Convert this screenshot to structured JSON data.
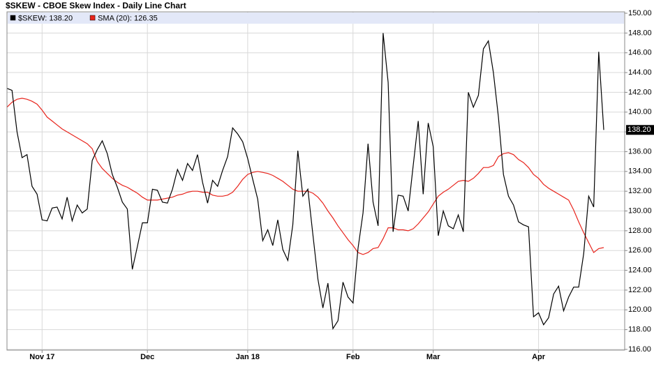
{
  "chart_data": {
    "type": "line",
    "title": "$SKEW - CBOE Skew Index - Daily Line Chart",
    "categories": [
      null,
      null,
      null,
      null,
      null,
      null,
      null,
      "Nov 17",
      null,
      null,
      null,
      null,
      null,
      null,
      null,
      null,
      null,
      null,
      null,
      null,
      null,
      null,
      null,
      null,
      null,
      null,
      null,
      null,
      "Dec",
      null,
      null,
      null,
      null,
      null,
      null,
      null,
      null,
      null,
      null,
      null,
      null,
      null,
      null,
      null,
      null,
      null,
      null,
      null,
      "Jan 18",
      null,
      null,
      null,
      null,
      null,
      null,
      null,
      null,
      null,
      null,
      null,
      null,
      null,
      null,
      null,
      null,
      null,
      null,
      null,
      null,
      "Feb",
      null,
      null,
      null,
      null,
      null,
      null,
      null,
      null,
      null,
      null,
      null,
      null,
      null,
      null,
      null,
      "Mar",
      null,
      null,
      null,
      null,
      null,
      null,
      null,
      null,
      null,
      null,
      null,
      null,
      null,
      null,
      null,
      null,
      null,
      null,
      null,
      null,
      "Apr",
      null,
      null,
      null,
      null,
      null,
      null,
      null,
      null,
      null,
      null,
      null,
      null,
      null
    ],
    "series": [
      {
        "name": "$SKEW: 138.20",
        "color": "#000000",
        "last_value_label": "138.20",
        "values": [
          142.4,
          142.2,
          138.0,
          135.4,
          135.7,
          132.5,
          131.7,
          129.1,
          129.0,
          130.3,
          130.4,
          129.2,
          131.4,
          129.0,
          130.6,
          129.8,
          130.2,
          135.1,
          136.2,
          137.1,
          135.8,
          133.7,
          132.4,
          130.9,
          130.2,
          124.1,
          126.4,
          128.8,
          128.8,
          132.2,
          132.1,
          130.9,
          130.8,
          132.2,
          134.2,
          133.1,
          134.8,
          134.1,
          135.7,
          132.9,
          130.8,
          133.1,
          132.5,
          134.1,
          135.5,
          138.4,
          137.8,
          137.0,
          135.3,
          133.2,
          131.2,
          127.0,
          128.1,
          126.5,
          129.1,
          126.1,
          125.0,
          128.6,
          136.1,
          131.5,
          132.2,
          127.6,
          123.1,
          120.2,
          122.7,
          118.1,
          118.9,
          122.8,
          121.3,
          120.7,
          126.2,
          129.8,
          136.8,
          130.9,
          128.5,
          148.0,
          143.0,
          127.9,
          131.6,
          131.5,
          130.0,
          134.6,
          139.1,
          131.7,
          138.9,
          136.5,
          127.5,
          130.0,
          128.5,
          128.2,
          129.6,
          127.9,
          142.0,
          140.5,
          141.7,
          146.4,
          147.2,
          144.0,
          139.5,
          133.7,
          131.5,
          130.6,
          128.9,
          128.6,
          128.4,
          119.3,
          119.7,
          118.5,
          119.2,
          121.6,
          122.4,
          119.9,
          121.3,
          122.3,
          122.3,
          125.7,
          131.5,
          130.4,
          146.1,
          138.2
        ]
      },
      {
        "name": "SMA (20): 126.35",
        "color": "#e8241c",
        "values": [
          140.5,
          141.0,
          141.3,
          141.4,
          141.3,
          141.1,
          140.8,
          140.2,
          139.5,
          139.1,
          138.7,
          138.3,
          138.0,
          137.7,
          137.4,
          137.1,
          136.8,
          136.3,
          135.0,
          134.3,
          133.8,
          133.3,
          132.9,
          132.6,
          132.4,
          132.1,
          131.8,
          131.4,
          131.1,
          131.1,
          131.1,
          131.2,
          131.3,
          131.4,
          131.6,
          131.7,
          131.9,
          132.0,
          132.0,
          131.9,
          131.9,
          131.6,
          131.5,
          131.5,
          131.6,
          131.9,
          132.5,
          133.2,
          133.7,
          133.9,
          134.0,
          133.9,
          133.8,
          133.6,
          133.3,
          133.0,
          132.6,
          132.2,
          132.0,
          132.0,
          132.0,
          131.8,
          131.4,
          130.8,
          130.0,
          129.3,
          128.5,
          127.8,
          127.1,
          126.5,
          125.8,
          125.6,
          125.8,
          126.2,
          126.3,
          127.2,
          128.3,
          128.3,
          128.1,
          128.1,
          128.0,
          128.2,
          128.7,
          129.3,
          129.9,
          130.7,
          131.5,
          131.9,
          132.2,
          132.6,
          133.0,
          133.1,
          133.0,
          133.3,
          133.8,
          134.4,
          134.4,
          134.6,
          135.5,
          135.8,
          135.9,
          135.7,
          135.2,
          134.9,
          134.4,
          133.7,
          133.3,
          132.7,
          132.3,
          132.0,
          131.7,
          131.4,
          131.1,
          130.1,
          128.9,
          127.8,
          126.8,
          125.8,
          126.2,
          126.3
        ]
      }
    ],
    "ylim": [
      116,
      150
    ],
    "yticks": [
      {
        "value": 116,
        "label": "116.00"
      },
      {
        "value": 118,
        "label": "118.00"
      },
      {
        "value": 120,
        "label": "120.00"
      },
      {
        "value": 122,
        "label": "122.00"
      },
      {
        "value": 124,
        "label": "124.00"
      },
      {
        "value": 126,
        "label": "126.00"
      },
      {
        "value": 128,
        "label": "128.00"
      },
      {
        "value": 130,
        "label": "130.00"
      },
      {
        "value": 132,
        "label": "132.00"
      },
      {
        "value": 134,
        "label": "134.00"
      },
      {
        "value": 136,
        "label": "136.00"
      },
      {
        "value": 138,
        "label": "138.00"
      },
      {
        "value": 140,
        "label": "140.00"
      },
      {
        "value": 142,
        "label": "142.00"
      },
      {
        "value": 144,
        "label": "144.00"
      },
      {
        "value": 146,
        "label": "146.00"
      },
      {
        "value": 148,
        "label": "148.00"
      },
      {
        "value": 150,
        "label": "150.00"
      }
    ],
    "grid": true
  }
}
